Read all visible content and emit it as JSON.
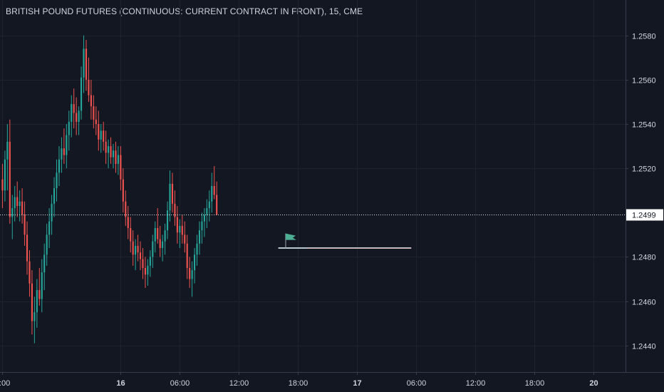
{
  "header": {
    "title": "BRITISH POUND FUTURES (CONTINUOUS: CURRENT CONTRACT IN FRONT), 15, CME"
  },
  "chart_data": {
    "type": "candlestick",
    "title": "BRITISH POUND FUTURES (CONTINUOUS: CURRENT CONTRACT IN FRONT), 15, CME",
    "ylim": [
      1.2428,
      1.2596
    ],
    "y_ticks": [
      "1.2580",
      "1.2560",
      "1.2540",
      "1.2520",
      "1.2480",
      "1.2460",
      "1.2440"
    ],
    "y_tick_values": [
      1.258,
      1.256,
      1.254,
      1.252,
      1.248,
      1.246,
      1.244
    ],
    "x_ticks": [
      "2:00",
      "16",
      "06:00",
      "12:00",
      "18:00",
      "17",
      "06:00",
      "12:00",
      "18:00",
      "20"
    ],
    "x_tick_index": [
      0,
      48,
      72,
      96,
      120,
      144,
      168,
      192,
      216,
      240
    ],
    "x_index_range": [
      -1,
      253
    ],
    "last_price": {
      "value": 1.2499,
      "label": "1.2499"
    },
    "bullish_color": "#26a69a",
    "bearish_color": "#ef5350",
    "background_color": "#131722",
    "grid": true,
    "projection_line": {
      "from_index": 112,
      "to_index": 166,
      "value": 1.2484
    },
    "flag_marker": {
      "index": 115,
      "value": 1.2488
    },
    "ohlc": [
      [
        1.2515,
        1.2522,
        1.2502,
        1.251
      ],
      [
        1.251,
        1.2528,
        1.2505,
        1.2524
      ],
      [
        1.2524,
        1.254,
        1.251,
        1.2532
      ],
      [
        1.2532,
        1.2542,
        1.2495,
        1.2498
      ],
      [
        1.2498,
        1.2508,
        1.2488,
        1.2502
      ],
      [
        1.2502,
        1.2512,
        1.2496,
        1.2507
      ],
      [
        1.2507,
        1.2514,
        1.2498,
        1.2503
      ],
      [
        1.2503,
        1.251,
        1.2496,
        1.2505
      ],
      [
        1.2505,
        1.2511,
        1.2495,
        1.2499
      ],
      [
        1.2499,
        1.2505,
        1.2485,
        1.249
      ],
      [
        1.249,
        1.2496,
        1.2472,
        1.2478
      ],
      [
        1.2478,
        1.2483,
        1.2462,
        1.2468
      ],
      [
        1.2468,
        1.2474,
        1.2445,
        1.2451
      ],
      [
        1.2451,
        1.2462,
        1.2441,
        1.2455
      ],
      [
        1.2455,
        1.247,
        1.2448,
        1.2465
      ],
      [
        1.2465,
        1.2475,
        1.2458,
        1.2461
      ],
      [
        1.2461,
        1.2479,
        1.2455,
        1.2473
      ],
      [
        1.2473,
        1.2486,
        1.2465,
        1.2481
      ],
      [
        1.2481,
        1.2495,
        1.2476,
        1.249
      ],
      [
        1.249,
        1.2502,
        1.2484,
        1.2496
      ],
      [
        1.2496,
        1.2508,
        1.249,
        1.2504
      ],
      [
        1.2504,
        1.2516,
        1.2498,
        1.2511
      ],
      [
        1.2511,
        1.2524,
        1.2505,
        1.2518
      ],
      [
        1.2518,
        1.253,
        1.2512,
        1.2524
      ],
      [
        1.2524,
        1.2534,
        1.2518,
        1.2529
      ],
      [
        1.2529,
        1.2538,
        1.2522,
        1.2526
      ],
      [
        1.2526,
        1.254,
        1.252,
        1.2535
      ],
      [
        1.2535,
        1.2546,
        1.2528,
        1.2541
      ],
      [
        1.2541,
        1.2553,
        1.2534,
        1.2549
      ],
      [
        1.2549,
        1.2556,
        1.2538,
        1.2545
      ],
      [
        1.2545,
        1.2552,
        1.2535,
        1.2541
      ],
      [
        1.2541,
        1.2548,
        1.2535,
        1.2546
      ],
      [
        1.2546,
        1.2566,
        1.2542,
        1.2561
      ],
      [
        1.2561,
        1.258,
        1.2554,
        1.2574
      ],
      [
        1.2574,
        1.2578,
        1.2555,
        1.256
      ],
      [
        1.256,
        1.257,
        1.255,
        1.2553
      ],
      [
        1.2553,
        1.256,
        1.2542,
        1.2548
      ],
      [
        1.2548,
        1.2553,
        1.2538,
        1.2542
      ],
      [
        1.2542,
        1.2548,
        1.2535,
        1.254
      ],
      [
        1.254,
        1.2546,
        1.2528,
        1.2533
      ],
      [
        1.2533,
        1.254,
        1.2527,
        1.2537
      ],
      [
        1.2537,
        1.2541,
        1.2528,
        1.2532
      ],
      [
        1.2532,
        1.2537,
        1.2522,
        1.2527
      ],
      [
        1.2527,
        1.2533,
        1.252,
        1.253
      ],
      [
        1.253,
        1.2534,
        1.2522,
        1.2525
      ],
      [
        1.2525,
        1.2531,
        1.252,
        1.2528
      ],
      [
        1.2528,
        1.2532,
        1.2518,
        1.2522
      ],
      [
        1.2522,
        1.253,
        1.2517,
        1.2526
      ],
      [
        1.2526,
        1.253,
        1.251,
        1.2515
      ],
      [
        1.2515,
        1.252,
        1.25,
        1.2505
      ],
      [
        1.2505,
        1.251,
        1.2494,
        1.2498
      ],
      [
        1.2498,
        1.2503,
        1.2488,
        1.2493
      ],
      [
        1.2493,
        1.2498,
        1.2482,
        1.2487
      ],
      [
        1.2487,
        1.2492,
        1.2476,
        1.2481
      ],
      [
        1.2481,
        1.2488,
        1.2474,
        1.2485
      ],
      [
        1.2485,
        1.249,
        1.2478,
        1.2482
      ],
      [
        1.2482,
        1.2487,
        1.2474,
        1.2479
      ],
      [
        1.2479,
        1.2484,
        1.247,
        1.2475
      ],
      [
        1.2475,
        1.248,
        1.2466,
        1.2472
      ],
      [
        1.2472,
        1.2479,
        1.2467,
        1.2476
      ],
      [
        1.2476,
        1.2483,
        1.2471,
        1.248
      ],
      [
        1.248,
        1.249,
        1.2475,
        1.2487
      ],
      [
        1.2487,
        1.2496,
        1.2482,
        1.2493
      ],
      [
        1.2493,
        1.2502,
        1.2486,
        1.2488
      ],
      [
        1.2488,
        1.2494,
        1.248,
        1.2484
      ],
      [
        1.2484,
        1.249,
        1.2478,
        1.2487
      ],
      [
        1.2487,
        1.2495,
        1.2481,
        1.2492
      ],
      [
        1.2492,
        1.2505,
        1.2488,
        1.2501
      ],
      [
        1.2501,
        1.2519,
        1.2496,
        1.2513
      ],
      [
        1.2513,
        1.2518,
        1.25,
        1.2504
      ],
      [
        1.2504,
        1.251,
        1.2494,
        1.2498
      ],
      [
        1.2498,
        1.2503,
        1.2486,
        1.2491
      ],
      [
        1.2491,
        1.2497,
        1.2484,
        1.2494
      ],
      [
        1.2494,
        1.2499,
        1.2486,
        1.249
      ],
      [
        1.249,
        1.2496,
        1.2482,
        1.2486
      ],
      [
        1.2486,
        1.249,
        1.247,
        1.2475
      ],
      [
        1.2475,
        1.248,
        1.2466,
        1.247
      ],
      [
        1.247,
        1.2478,
        1.2462,
        1.2474
      ],
      [
        1.2474,
        1.2484,
        1.2468,
        1.2481
      ],
      [
        1.2481,
        1.249,
        1.2476,
        1.2486
      ],
      [
        1.2486,
        1.2496,
        1.2481,
        1.2492
      ],
      [
        1.2492,
        1.25,
        1.2486,
        1.2496
      ],
      [
        1.2496,
        1.2502,
        1.2489,
        1.2499
      ],
      [
        1.2499,
        1.2506,
        1.2493,
        1.2502
      ],
      [
        1.2502,
        1.251,
        1.2496,
        1.2505
      ],
      [
        1.2505,
        1.2518,
        1.25,
        1.2512
      ],
      [
        1.2512,
        1.2521,
        1.2506,
        1.2508
      ],
      [
        1.2508,
        1.2514,
        1.2499,
        1.2499
      ]
    ]
  }
}
